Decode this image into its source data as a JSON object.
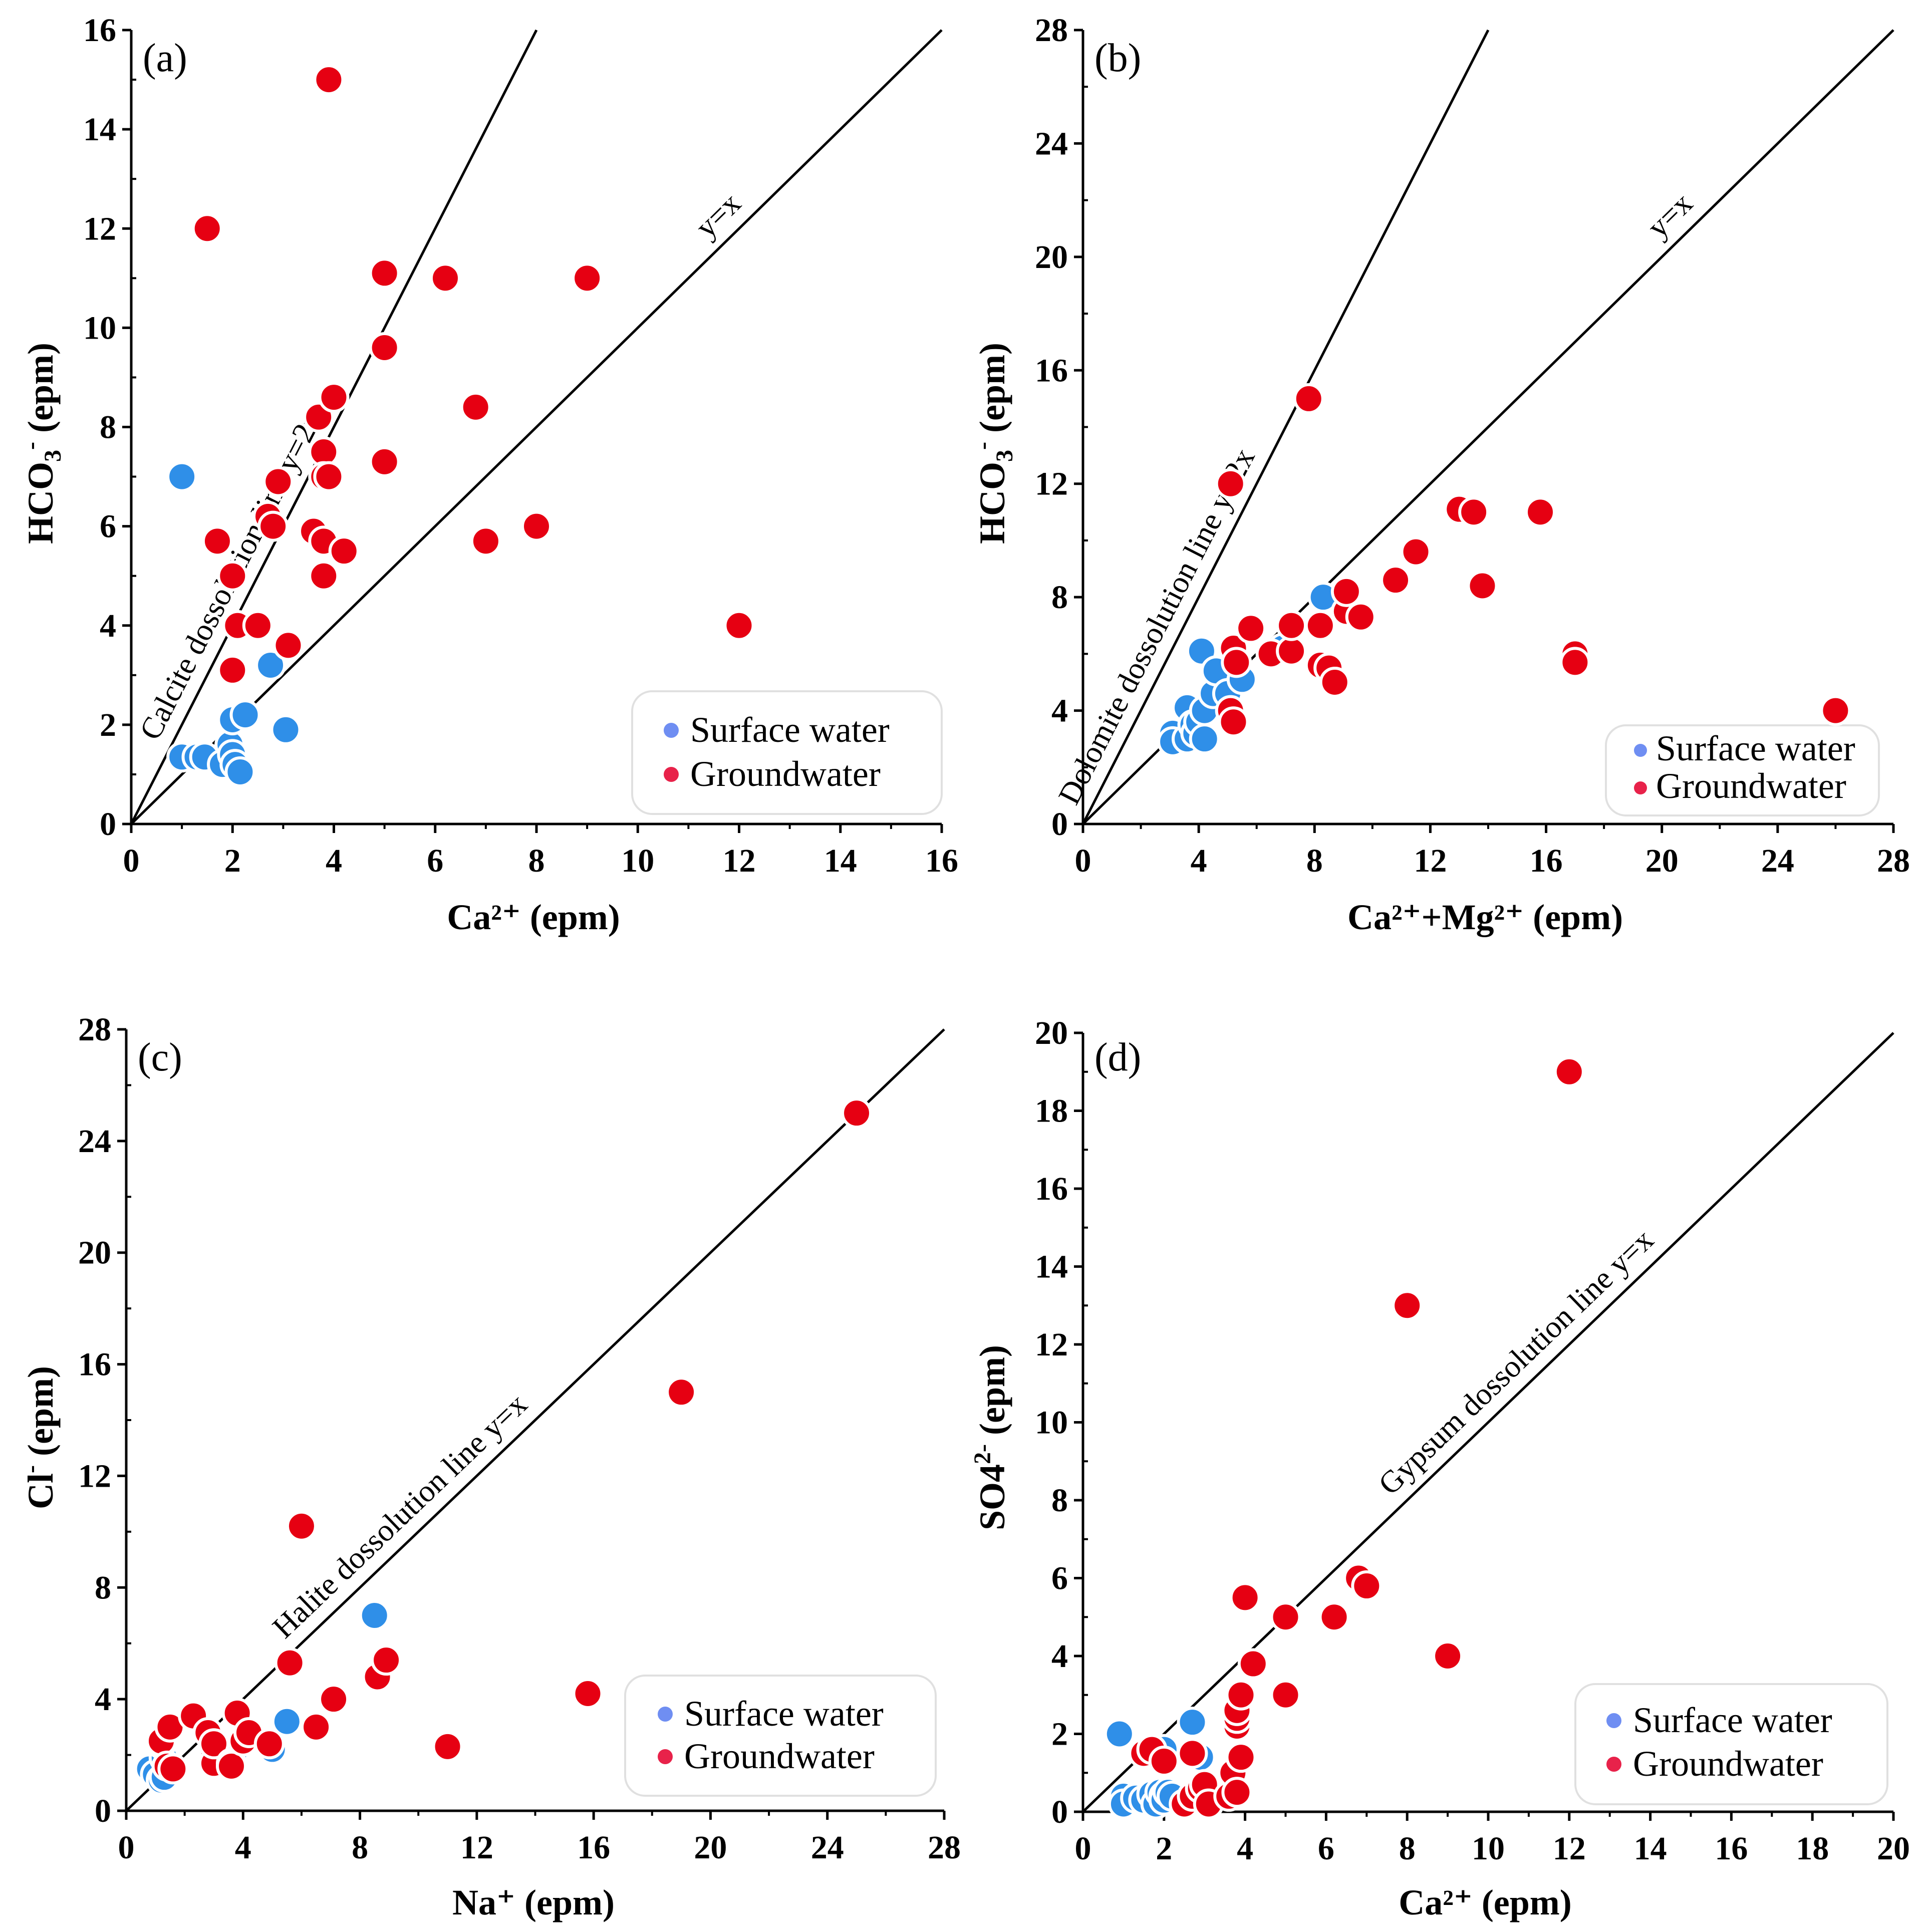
{
  "colors": {
    "surface": "#2f8fe8",
    "ground": "#e60012",
    "surface_marker": "#6f8ef2",
    "ground_marker": "#e8224a",
    "axis": "#000000"
  },
  "legend": {
    "surface_label": "Surface water",
    "ground_label": "Groundwater"
  },
  "chart_data": [
    {
      "panel": "(a)",
      "type": "scatter",
      "xlabel": "Ca²⁺ (epm)",
      "ylabel_main": "HCO",
      "ylabel_sub": "3",
      "ylabel_sup": "-",
      "ylabel_rest": " (epm)",
      "xlim": [
        0,
        16
      ],
      "ylim": [
        0,
        16
      ],
      "xticks": [
        0,
        2,
        4,
        6,
        8,
        10,
        12,
        14,
        16
      ],
      "yticks": [
        0,
        2,
        4,
        6,
        8,
        10,
        12,
        14,
        16
      ],
      "lines": [
        {
          "slope": 2,
          "label": "Calcite dossolution line y=2x"
        },
        {
          "slope": 1,
          "label": "y=x"
        }
      ],
      "legend_position": "bottom-right",
      "series": [
        {
          "name": "Surface water",
          "points": [
            [
              1.0,
              7.0
            ],
            [
              1.0,
              1.35
            ],
            [
              1.3,
              1.35
            ],
            [
              1.45,
              1.35
            ],
            [
              1.8,
              1.2
            ],
            [
              1.95,
              1.6
            ],
            [
              2.0,
              1.4
            ],
            [
              2.05,
              1.2
            ],
            [
              2.0,
              2.1
            ],
            [
              2.15,
              1.05
            ],
            [
              2.25,
              2.2
            ],
            [
              2.75,
              3.2
            ],
            [
              3.05,
              1.9
            ]
          ]
        },
        {
          "name": "Groundwater",
          "points": [
            [
              1.5,
              12.0
            ],
            [
              1.7,
              5.7
            ],
            [
              2.0,
              5.0
            ],
            [
              2.0,
              3.1
            ],
            [
              2.1,
              4.0
            ],
            [
              2.5,
              4.0
            ],
            [
              2.7,
              6.2
            ],
            [
              2.8,
              6.0
            ],
            [
              2.9,
              6.9
            ],
            [
              3.1,
              3.6
            ],
            [
              3.6,
              5.9
            ],
            [
              3.7,
              8.2
            ],
            [
              3.8,
              7.5
            ],
            [
              3.8,
              5.7
            ],
            [
              3.8,
              5.0
            ],
            [
              3.8,
              7.0
            ],
            [
              3.9,
              7.0
            ],
            [
              3.9,
              15.0
            ],
            [
              4.0,
              8.6
            ],
            [
              4.2,
              5.5
            ],
            [
              5.0,
              11.1
            ],
            [
              5.0,
              9.6
            ],
            [
              5.0,
              7.3
            ],
            [
              6.2,
              11.0
            ],
            [
              6.8,
              8.4
            ],
            [
              7.0,
              5.7
            ],
            [
              8.0,
              6.0
            ],
            [
              9.0,
              11.0
            ],
            [
              12.0,
              4.0
            ]
          ]
        }
      ]
    },
    {
      "panel": "(b)",
      "type": "scatter",
      "xlabel": "Ca²⁺+Mg²⁺ (epm)",
      "ylabel_main": "HCO",
      "ylabel_sub": "3",
      "ylabel_sup": "-",
      "ylabel_rest": " (epm)",
      "xlim": [
        0,
        28
      ],
      "ylim": [
        0,
        28
      ],
      "xticks": [
        0,
        4,
        8,
        12,
        16,
        20,
        24,
        28
      ],
      "yticks": [
        0,
        4,
        8,
        12,
        16,
        20,
        24,
        28
      ],
      "lines": [
        {
          "slope": 2,
          "label": "Dolomite dossolution line y=2x"
        },
        {
          "slope": 1,
          "label": "y=x"
        }
      ],
      "legend_position": "bottom-right",
      "series": [
        {
          "name": "Surface water",
          "points": [
            [
              3.1,
              3.2
            ],
            [
              3.1,
              2.9
            ],
            [
              3.6,
              3.0
            ],
            [
              3.6,
              4.1
            ],
            [
              3.8,
              3.5
            ],
            [
              3.9,
              3.2
            ],
            [
              4.0,
              3.6
            ],
            [
              4.1,
              6.1
            ],
            [
              4.2,
              3.0
            ],
            [
              4.2,
              4.0
            ],
            [
              4.5,
              4.6
            ],
            [
              4.6,
              5.4
            ],
            [
              5.0,
              4.6
            ],
            [
              5.5,
              5.1
            ],
            [
              6.9,
              6.2
            ],
            [
              8.3,
              8.0
            ]
          ]
        },
        {
          "name": "Groundwater",
          "points": [
            [
              5.1,
              12.0
            ],
            [
              5.1,
              4.0
            ],
            [
              5.2,
              3.6
            ],
            [
              5.2,
              6.2
            ],
            [
              5.3,
              5.7
            ],
            [
              5.8,
              6.9
            ],
            [
              6.5,
              6.0
            ],
            [
              7.2,
              6.1
            ],
            [
              7.2,
              7.0
            ],
            [
              7.8,
              15.0
            ],
            [
              8.2,
              5.6
            ],
            [
              8.2,
              7.0
            ],
            [
              8.5,
              5.5
            ],
            [
              8.7,
              5.0
            ],
            [
              9.1,
              7.5
            ],
            [
              9.1,
              8.2
            ],
            [
              9.6,
              7.3
            ],
            [
              10.8,
              8.6
            ],
            [
              11.5,
              9.6
            ],
            [
              13.0,
              11.1
            ],
            [
              13.5,
              11.0
            ],
            [
              13.8,
              8.4
            ],
            [
              15.8,
              11.0
            ],
            [
              17.0,
              6.0
            ],
            [
              17.0,
              5.7
            ],
            [
              26.0,
              4.0
            ]
          ]
        }
      ]
    },
    {
      "panel": "(c)",
      "type": "scatter",
      "xlabel": "Na⁺ (epm)",
      "ylabel_main": "Cl",
      "ylabel_sub": "",
      "ylabel_sup": "-",
      "ylabel_rest": " (epm)",
      "xlim": [
        0,
        28
      ],
      "ylim": [
        0,
        28
      ],
      "xticks": [
        0,
        4,
        8,
        12,
        16,
        20,
        24,
        28
      ],
      "yticks": [
        0,
        4,
        8,
        12,
        16,
        20,
        24,
        28
      ],
      "lines": [
        {
          "slope": 1,
          "label": "Halite dossolution line y=x"
        }
      ],
      "legend_position": "bottom-right",
      "series": [
        {
          "name": "Surface water",
          "points": [
            [
              0.8,
              1.5
            ],
            [
              1.0,
              1.3
            ],
            [
              1.2,
              1.1
            ],
            [
              1.3,
              1.2
            ],
            [
              1.3,
              1.9
            ],
            [
              3.0,
              1.9
            ],
            [
              3.7,
              2.1
            ],
            [
              5.0,
              2.2
            ],
            [
              5.5,
              3.2
            ],
            [
              8.5,
              7.0
            ]
          ]
        },
        {
          "name": "Groundwater",
          "points": [
            [
              1.2,
              2.4
            ],
            [
              1.2,
              2.5
            ],
            [
              1.4,
              1.6
            ],
            [
              1.5,
              3.0
            ],
            [
              1.6,
              1.5
            ],
            [
              2.3,
              3.4
            ],
            [
              2.8,
              2.8
            ],
            [
              3.0,
              2.1
            ],
            [
              3.0,
              1.7
            ],
            [
              3.0,
              2.4
            ],
            [
              3.6,
              1.7
            ],
            [
              3.6,
              1.6
            ],
            [
              3.8,
              3.5
            ],
            [
              4.0,
              2.5
            ],
            [
              4.2,
              2.8
            ],
            [
              4.9,
              2.4
            ],
            [
              5.6,
              5.3
            ],
            [
              6.0,
              10.2
            ],
            [
              6.5,
              3.0
            ],
            [
              7.1,
              4.0
            ],
            [
              8.6,
              4.8
            ],
            [
              8.9,
              5.4
            ],
            [
              11.0,
              2.3
            ],
            [
              15.8,
              4.2
            ],
            [
              19.0,
              15.0
            ],
            [
              25.0,
              25.0
            ]
          ]
        }
      ]
    },
    {
      "panel": "(d)",
      "type": "scatter",
      "xlabel": "Ca²⁺ (epm)",
      "ylabel_main": "SO4",
      "ylabel_sub": "",
      "ylabel_sup": "2-",
      "ylabel_rest": " (epm)",
      "xlim": [
        0,
        20
      ],
      "ylim": [
        0,
        20
      ],
      "xticks": [
        0,
        2,
        4,
        6,
        8,
        10,
        12,
        14,
        16,
        18,
        20
      ],
      "yticks": [
        0,
        2,
        4,
        6,
        8,
        10,
        12,
        14,
        16,
        18,
        20
      ],
      "lines": [
        {
          "slope": 1,
          "label": "Gypsum dossolution line y=x"
        }
      ],
      "legend_position": "bottom-right",
      "series": [
        {
          "name": "Surface water",
          "points": [
            [
              0.9,
              2.0
            ],
            [
              1.0,
              0.4
            ],
            [
              1.0,
              0.2
            ],
            [
              1.3,
              0.35
            ],
            [
              1.5,
              0.3
            ],
            [
              1.7,
              0.45
            ],
            [
              1.8,
              0.2
            ],
            [
              1.9,
              0.5
            ],
            [
              2.0,
              0.4
            ],
            [
              2.0,
              0.3
            ],
            [
              2.0,
              1.6
            ],
            [
              2.1,
              0.5
            ],
            [
              2.2,
              0.4
            ],
            [
              2.7,
              2.3
            ],
            [
              2.9,
              1.4
            ]
          ]
        },
        {
          "name": "Groundwater",
          "points": [
            [
              1.5,
              1.5
            ],
            [
              1.7,
              1.6
            ],
            [
              2.0,
              1.3
            ],
            [
              2.5,
              0.2
            ],
            [
              2.7,
              0.4
            ],
            [
              2.7,
              1.5
            ],
            [
              2.9,
              0.6
            ],
            [
              3.0,
              0.7
            ],
            [
              3.1,
              0.2
            ],
            [
              3.6,
              0.4
            ],
            [
              3.7,
              1.0
            ],
            [
              3.8,
              0.5
            ],
            [
              3.8,
              2.2
            ],
            [
              3.8,
              2.4
            ],
            [
              3.8,
              2.6
            ],
            [
              3.9,
              1.4
            ],
            [
              3.9,
              3.0
            ],
            [
              4.0,
              5.5
            ],
            [
              4.2,
              3.8
            ],
            [
              5.0,
              5.0
            ],
            [
              5.0,
              3.0
            ],
            [
              6.2,
              5.0
            ],
            [
              6.8,
              6.0
            ],
            [
              7.0,
              5.8
            ],
            [
              8.0,
              13.0
            ],
            [
              9.0,
              4.0
            ],
            [
              12.0,
              19.0
            ]
          ]
        }
      ]
    }
  ]
}
